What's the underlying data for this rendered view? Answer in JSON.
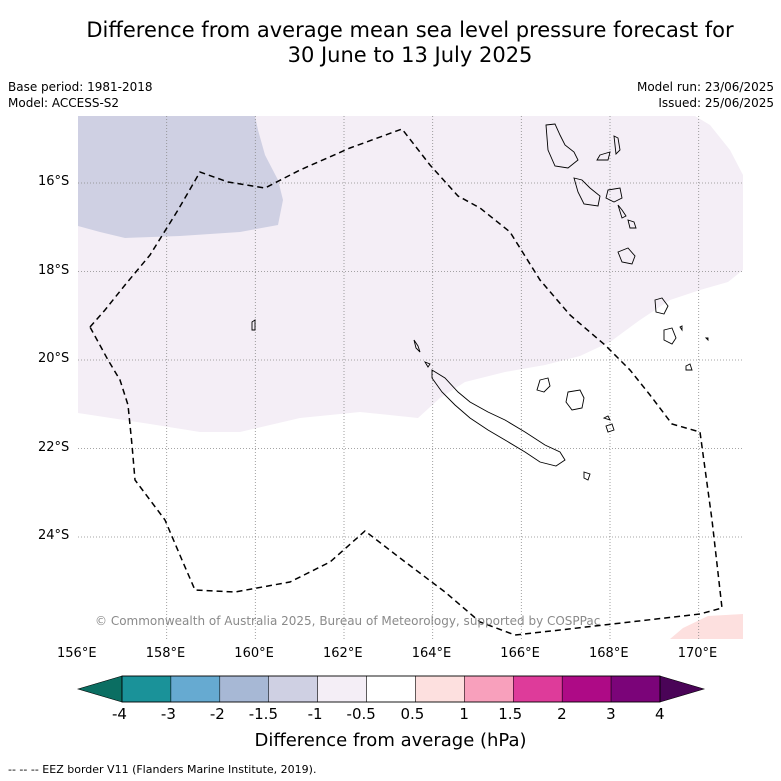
{
  "header": {
    "title_line1": "Difference from average mean sea level pressure forecast for",
    "title_line2": "30 June to 13 July 2025",
    "base_period": "Base period: 1981-2018",
    "model": "Model: ACCESS-S2",
    "model_run": "Model run: 23/06/2025",
    "issued": "Issued: 25/06/2025"
  },
  "map": {
    "lon_labels": [
      "156°E",
      "158°E",
      "160°E",
      "162°E",
      "164°E",
      "166°E",
      "168°E",
      "170°E"
    ],
    "lat_labels": [
      "16°S",
      "18°S",
      "20°S",
      "22°S",
      "24°S"
    ],
    "copyright": "© Commonwealth of Australia 2025, Bureau of Meteorology, supported by COSPPac",
    "colors": {
      "anomaly_minus_1_5_to_minus_1": "#cfd0e3",
      "anomaly_minus_1_to_minus_0_5": "#f4eef6",
      "anomaly_0_5_to_1": "#fde0df",
      "eez_border": "#000000",
      "grid": "#888888"
    }
  },
  "colorbar": {
    "ticks": [
      "-4",
      "-3",
      "-2",
      "-1.5",
      "-1",
      "-0.5",
      "0.5",
      "1",
      "1.5",
      "2",
      "3",
      "4"
    ],
    "low_extend_color": "#0b6e62",
    "high_extend_color": "#4a0457",
    "bin_colors": [
      "#1a9299",
      "#66aad1",
      "#a7b8d5",
      "#cfd0e3",
      "#f4eef6",
      "#ffffff",
      "#fde0df",
      "#f8a0bc",
      "#de3b9a",
      "#ae0a86",
      "#7b0479"
    ],
    "label": "Difference from average (hPa)"
  },
  "footer": {
    "legend": "--  --  -- EEZ border V11 (Flanders Marine Institute, 2019)."
  }
}
